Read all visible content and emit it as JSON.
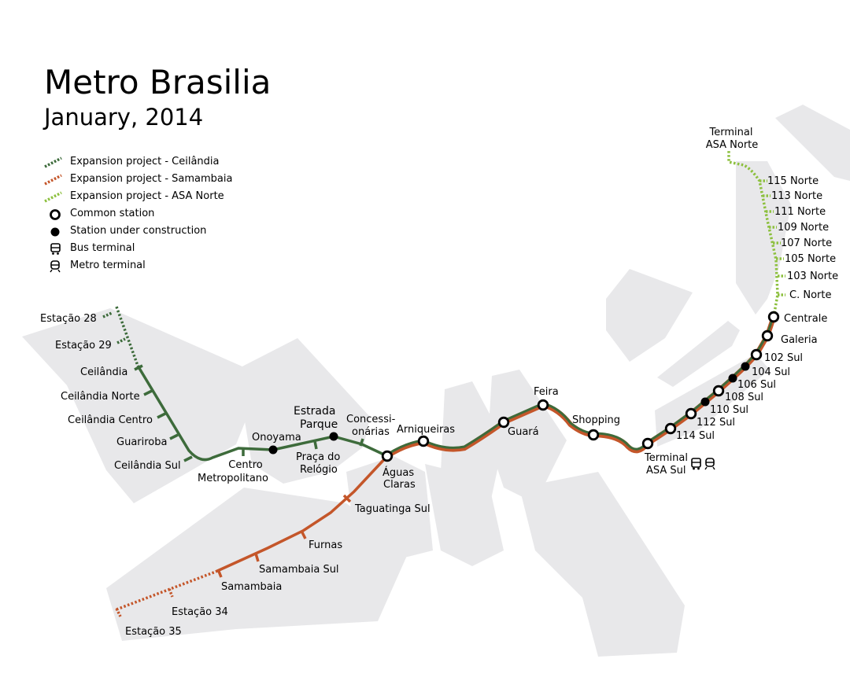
{
  "title": "Metro Brasilia",
  "subtitle": "January, 2014",
  "colors": {
    "ceilandia_line": "#3d6b3b",
    "samambaia_line": "#c4562a",
    "asa_norte_line": "#8dc03f",
    "district_fill": "#e8e8ea"
  },
  "legend": {
    "expansion_ceilandia": "Expansion project - Ceilândia",
    "expansion_samambaia": "Expansion project - Samambaia",
    "expansion_asa_norte": "Expansion project - ASA Norte",
    "common_station": "Common station",
    "under_construction": "Station under construction",
    "bus_terminal": "Bus terminal",
    "metro_terminal": "Metro terminal"
  },
  "stations": {
    "estacao_28": "Estação 28",
    "estacao_29": "Estação 29",
    "ceilandia": "Ceilândia",
    "ceilandia_norte": "Ceilândia Norte",
    "ceilandia_centro": "Ceilândia Centro",
    "guariroba": "Guariroba",
    "ceilandia_sul": "Ceilândia Sul",
    "centro_metropolitano_1": "Centro",
    "centro_metropolitano_2": "Metropolitano",
    "onoyama": "Onoyama",
    "estrada_parque_1": "Estrada",
    "estrada_parque_2": "Parque",
    "praca_relogio_1": "Praça do",
    "praca_relogio_2": "Relógio",
    "concessionarias_1": "Concessi-",
    "concessionarias_2": "onárias",
    "aguas_claras_1": "Águas",
    "aguas_claras_2": "Claras",
    "arniqueiras": "Arniqueiras",
    "guara": "Guará",
    "feira": "Feira",
    "shopping": "Shopping",
    "terminal_asa_sul_1": "Terminal",
    "terminal_asa_sul_2": "ASA Sul",
    "taguatinga_sul": "Taguatinga Sul",
    "furnas": "Furnas",
    "samambaia_sul": "Samambaia Sul",
    "samambaia": "Samambaia",
    "estacao_34": "Estação 34",
    "estacao_35": "Estação 35",
    "s114_sul": "114 Sul",
    "s112_sul": "112 Sul",
    "s110_sul": "110 Sul",
    "s108_sul": "108 Sul",
    "s106_sul": "106 Sul",
    "s104_sul": "104 Sul",
    "s102_sul": "102 Sul",
    "galeria": "Galeria",
    "centrale": "Centrale",
    "c_norte": "C. Norte",
    "n103": "103 Norte",
    "n105": "105 Norte",
    "n107": "107 Norte",
    "n109": "109 Norte",
    "n111": "111 Norte",
    "n113": "113 Norte",
    "n115": "115 Norte",
    "terminal_asa_norte_1": "Terminal",
    "terminal_asa_norte_2": "ASA Norte"
  }
}
